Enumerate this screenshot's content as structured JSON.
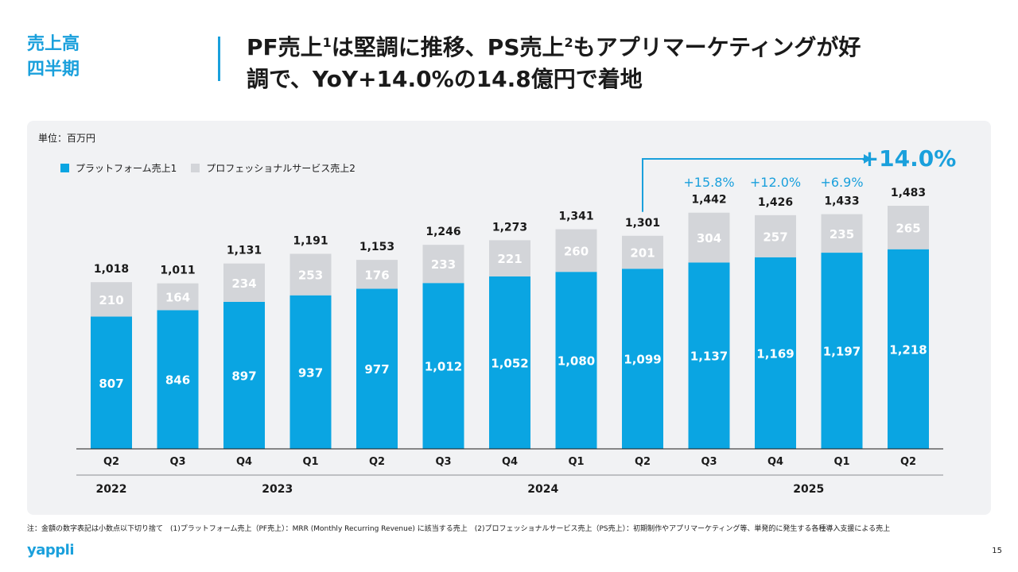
{
  "section": {
    "line1": "売上高",
    "line2": "四半期"
  },
  "title": {
    "line1_a": "PF売上",
    "line1_sup1": "1",
    "line1_b": "は堅調に推移、PS売上",
    "line1_sup2": "2",
    "line1_c": "もアプリマーケティングが好",
    "line2": "調で、YoY+14.0%の14.8億円で着地"
  },
  "unit": "単位：百万円",
  "footnote": "注：金額の数字表記は小数点以下切り捨て　(1)プラットフォーム売上（PF売上）：MRR (Monthly Recurring Revenue) に該当する売上　(2)プロフェッショナルサービス売上（PS売上）：初期制作やアプリマーケティング等、単発的に発生する各種導入支援による売上",
  "logo": "yappli",
  "page_number": "15",
  "colors": {
    "pf": "#0aa5e2",
    "ps": "#d3d5d9",
    "accent": "#1aa0dc"
  },
  "chart_data": {
    "type": "bar",
    "stacked": true,
    "categories": [
      "Q2",
      "Q3",
      "Q4",
      "Q1",
      "Q2",
      "Q3",
      "Q4",
      "Q1",
      "Q2",
      "Q3",
      "Q4",
      "Q1",
      "Q2"
    ],
    "years": [
      {
        "label": "2022",
        "start": 0,
        "end": 0
      },
      {
        "label": "2023",
        "start": 1,
        "end": 4
      },
      {
        "label": "2024",
        "start": 5,
        "end": 8
      },
      {
        "label": "2025",
        "start": 9,
        "end": 12
      }
    ],
    "series": [
      {
        "name": "プラットフォーム売上1",
        "values": [
          807,
          846,
          897,
          937,
          977,
          1012,
          1052,
          1080,
          1099,
          1137,
          1169,
          1197,
          1218
        ]
      },
      {
        "name": "プロフェッショナルサービス売上2",
        "values": [
          210,
          164,
          234,
          253,
          176,
          233,
          221,
          260,
          201,
          304,
          257,
          235,
          265
        ]
      }
    ],
    "totals": [
      "1,018",
      "1,011",
      "1,131",
      "1,191",
      "1,153",
      "1,246",
      "1,273",
      "1,341",
      "1,301",
      "1,442",
      "1,426",
      "1,433",
      "1,483"
    ],
    "growth_labels": [
      {
        "index": 9,
        "label": "+15.8%"
      },
      {
        "index": 10,
        "label": "+12.0%"
      },
      {
        "index": 11,
        "label": "+6.9%"
      }
    ],
    "yoy": {
      "from_index": 8,
      "to_index": 12,
      "label": "+14.0%"
    },
    "legend_position": "top-left",
    "grid": false
  }
}
